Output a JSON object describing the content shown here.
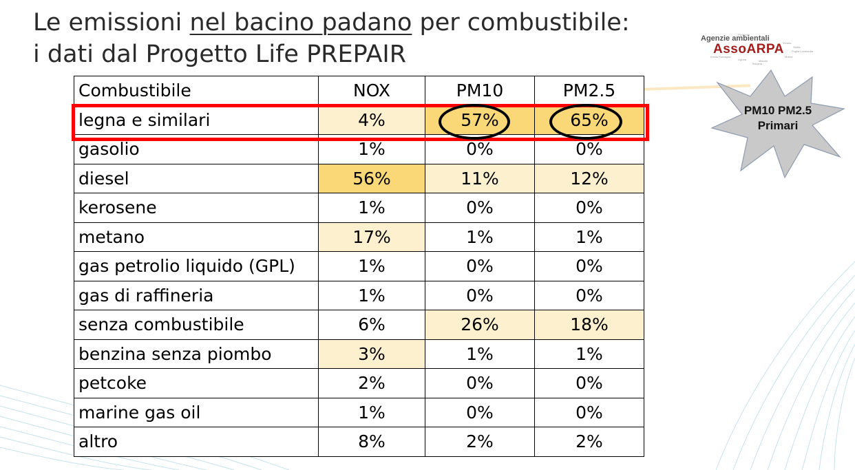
{
  "title": {
    "line1_pre": "Le emissioni ",
    "line1_underlined": "nel bacino padano",
    "line1_post": " per combustibile:",
    "line2": "i dati dal Progetto Life PREPAIR"
  },
  "logo": {
    "top_text": "Agenzie ambientali",
    "main_text": "AssoARPA"
  },
  "callout": {
    "line1": "PM10 PM2.5",
    "line2": "Primari"
  },
  "table": {
    "headers": [
      "Combustibile",
      "NOX",
      "PM10",
      "PM2.5"
    ],
    "rows": [
      {
        "label": "legna e similari",
        "nox": "4%",
        "pm10": "57%",
        "pm25": "65%"
      },
      {
        "label": "gasolio",
        "nox": "1%",
        "pm10": "0%",
        "pm25": "0%"
      },
      {
        "label": "diesel",
        "nox": "56%",
        "pm10": "11%",
        "pm25": "12%"
      },
      {
        "label": "kerosene",
        "nox": "1%",
        "pm10": "0%",
        "pm25": "0%"
      },
      {
        "label": "metano",
        "nox": "17%",
        "pm10": "1%",
        "pm25": "1%"
      },
      {
        "label": "gas petrolio liquido (GPL)",
        "nox": "1%",
        "pm10": "0%",
        "pm25": "0%"
      },
      {
        "label": "gas di raffineria",
        "nox": "1%",
        "pm10": "0%",
        "pm25": "0%"
      },
      {
        "label": "senza combustibile",
        "nox": "6%",
        "pm10": "26%",
        "pm25": "18%"
      },
      {
        "label": "benzina senza piombo",
        "nox": "3%",
        "pm10": "1%",
        "pm25": "1%"
      },
      {
        "label": "petcoke",
        "nox": "2%",
        "pm10": "0%",
        "pm25": "0%"
      },
      {
        "label": "marine gas oil",
        "nox": "1%",
        "pm10": "0%",
        "pm25": "0%"
      },
      {
        "label": "altro",
        "nox": "8%",
        "pm10": "2%",
        "pm25": "2%"
      }
    ]
  },
  "colors": {
    "highlight_light": "#fdf0cf",
    "highlight_dark": "#fbd877",
    "highlight_box": "#ff0000",
    "star_fill": "#c9c9c9"
  }
}
